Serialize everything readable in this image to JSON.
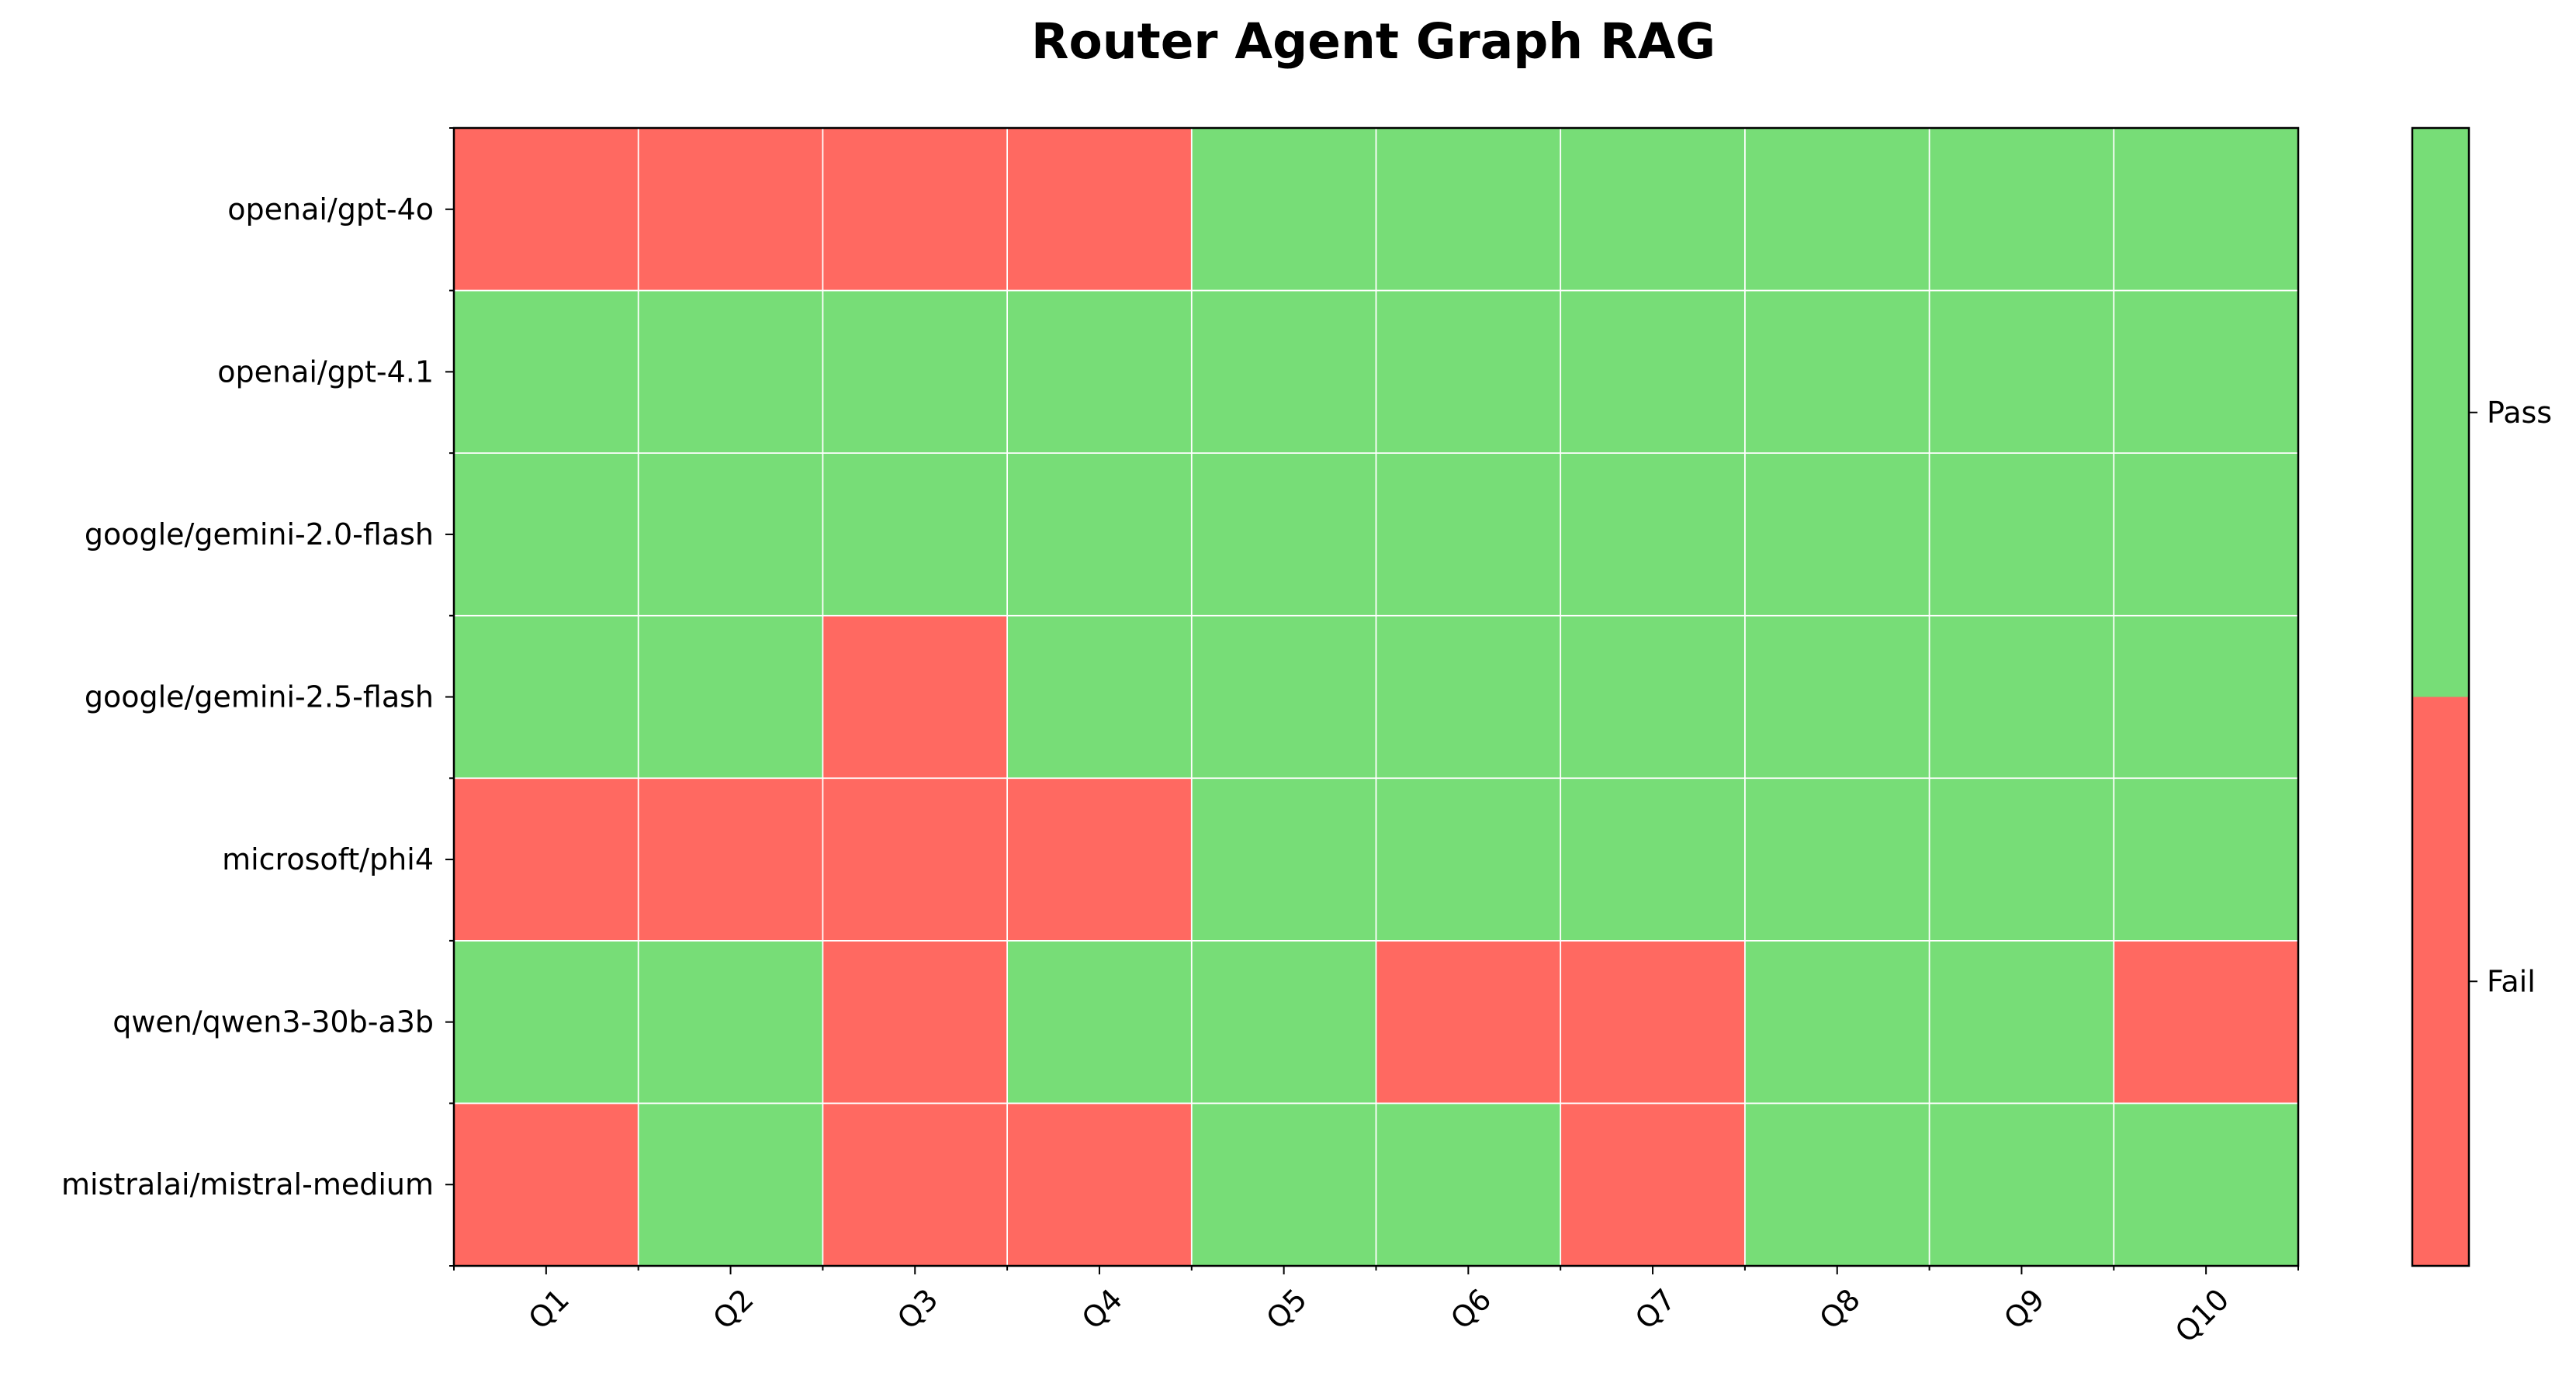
{
  "chart_data": {
    "type": "heatmap",
    "title": "Router Agent Graph RAG",
    "xlabel": "",
    "ylabel": "",
    "x_labels": [
      "Q1",
      "Q2",
      "Q3",
      "Q4",
      "Q5",
      "Q6",
      "Q7",
      "Q8",
      "Q9",
      "Q10"
    ],
    "y_labels": [
      "openai/gpt-4o",
      "openai/gpt-4.1",
      "google/gemini-2.0-flash",
      "google/gemini-2.5-flash",
      "microsoft/phi4",
      "qwen/qwen3-30b-a3b",
      "mistralai/mistral-medium"
    ],
    "values": [
      [
        0,
        0,
        0,
        0,
        1,
        1,
        1,
        1,
        1,
        1
      ],
      [
        1,
        1,
        1,
        1,
        1,
        1,
        1,
        1,
        1,
        1
      ],
      [
        1,
        1,
        1,
        1,
        1,
        1,
        1,
        1,
        1,
        1
      ],
      [
        1,
        1,
        0,
        1,
        1,
        1,
        1,
        1,
        1,
        1
      ],
      [
        0,
        0,
        0,
        0,
        1,
        1,
        1,
        1,
        1,
        1
      ],
      [
        1,
        1,
        0,
        1,
        1,
        0,
        0,
        1,
        1,
        0
      ],
      [
        0,
        1,
        0,
        0,
        1,
        1,
        0,
        1,
        1,
        1
      ]
    ],
    "colorbar": {
      "labels": [
        "Fail",
        "Pass"
      ],
      "values": [
        0,
        1
      ]
    },
    "colors": {
      "fail": "#ff6961",
      "pass": "#77dd77",
      "grid": "#ffffff",
      "axis": "#000000"
    },
    "grid": true
  }
}
